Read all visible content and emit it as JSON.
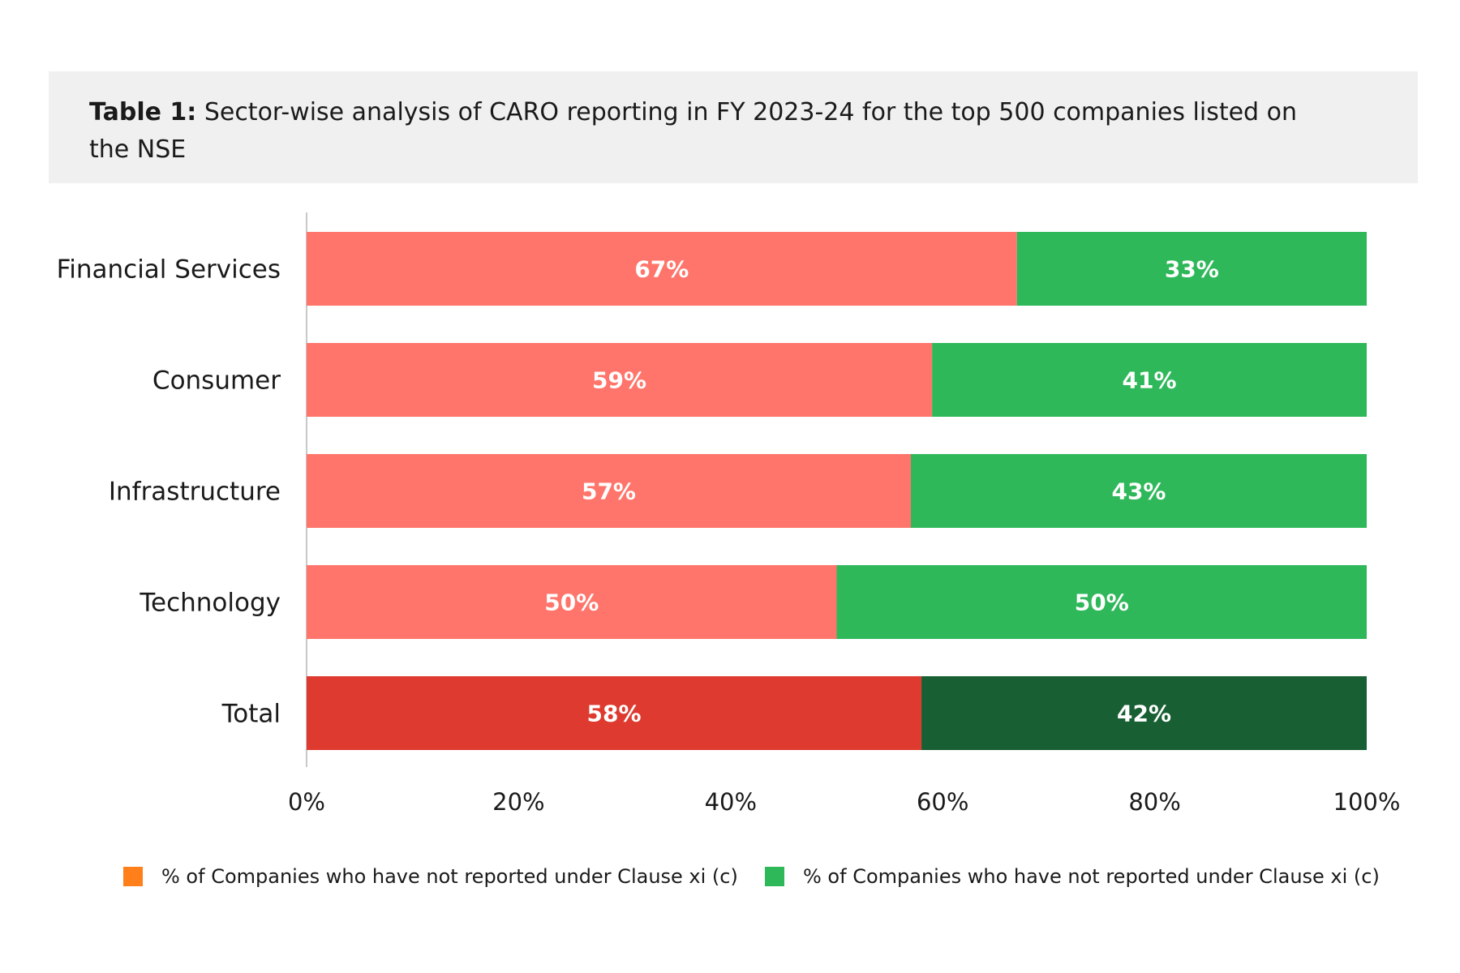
{
  "title": {
    "prefix": "Table 1:",
    "text": "Sector-wise analysis of CARO reporting in FY 2023-24 for the top 500 companies listed on the NSE"
  },
  "chart_data": {
    "type": "bar",
    "orientation": "horizontal",
    "stacked": true,
    "categories": [
      "Financial Services",
      "Consumer",
      "Infrastructure",
      "Technology",
      "Total"
    ],
    "series": [
      {
        "name": "% of Companies who have not reported under Clause xi (c)",
        "values": [
          67,
          59,
          57,
          50,
          58
        ],
        "labels": [
          "67%",
          "59%",
          "57%",
          "50%",
          "58%"
        ],
        "color": "#ff756b",
        "total_color": "#de3a2f",
        "legend_color": "#ff7f1a"
      },
      {
        "name": "% of Companies who have not reported under Clause xi (c)",
        "values": [
          33,
          41,
          43,
          50,
          42
        ],
        "labels": [
          "33%",
          "41%",
          "43%",
          "50%",
          "42%"
        ],
        "color": "#2fb85a",
        "total_color": "#185f33",
        "legend_color": "#2fb85a"
      }
    ],
    "xlim": [
      0,
      100
    ],
    "xticks": [
      "0%",
      "20%",
      "40%",
      "60%",
      "80%",
      "100%"
    ],
    "grid": false,
    "legend_position": "bottom"
  }
}
